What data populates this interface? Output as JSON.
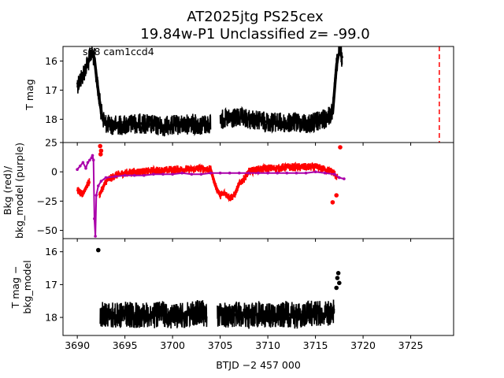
{
  "chart_data": {
    "type": "scatter",
    "title_line1": "AT2025jtg  PS25cex",
    "title_line2": "19.84w-P1 Unclassified z= -99.0",
    "annotation": "s88 cam1ccd4",
    "xlabel": "BTJD −2 457 000",
    "xlim": [
      3688.5,
      3729.5
    ],
    "x_ticks": [
      3690,
      3695,
      3700,
      3705,
      3710,
      3715,
      3720,
      3725
    ],
    "x_tick_labels": [
      "3690",
      "3695",
      "3700",
      "3705",
      "3710",
      "3715",
      "3720",
      "3725"
    ],
    "vline": {
      "x": 3728.0,
      "color": "#ff0000",
      "style": "dashed"
    },
    "panels": [
      {
        "id": "top",
        "ylabel": "T mag",
        "ylim": [
          18.8,
          15.5
        ],
        "y_inverted": true,
        "y_ticks": [
          16,
          17,
          18
        ],
        "y_tick_labels": [
          "16",
          "17",
          "18"
        ],
        "series": [
          {
            "color": "#000000",
            "segments": [
              {
                "x": [
                  3690.0,
                  3690.4,
                  3690.8,
                  3691.2,
                  3691.5,
                  3691.8,
                  3692.0,
                  3692.3,
                  3692.6,
                  3692.9,
                  3693.3,
                  3694.0,
                  3695.0,
                  3696.0,
                  3697.0,
                  3698.0,
                  3699.0,
                  3700.0,
                  3701.0,
                  3702.0,
                  3703.0,
                  3704.0
                ],
                "y": [
                  16.8,
                  16.6,
                  16.3,
                  16.0,
                  15.7,
                  15.9,
                  16.5,
                  17.3,
                  17.9,
                  18.1,
                  18.2,
                  18.2,
                  18.2,
                  18.15,
                  18.15,
                  18.2,
                  18.25,
                  18.2,
                  18.2,
                  18.15,
                  18.2,
                  18.15
                ]
              },
              {
                "x": [
                  3705.0,
                  3706.0,
                  3707.0,
                  3708.0,
                  3709.0,
                  3710.0,
                  3711.0,
                  3712.0,
                  3713.0,
                  3714.0,
                  3715.0,
                  3716.0,
                  3716.8,
                  3717.0,
                  3717.2,
                  3717.4,
                  3717.6,
                  3717.8
                ],
                "y": [
                  18.0,
                  18.0,
                  17.95,
                  18.0,
                  18.05,
                  18.1,
                  18.1,
                  18.15,
                  18.1,
                  18.15,
                  18.1,
                  18.0,
                  17.8,
                  17.0,
                  16.2,
                  15.8,
                  15.7,
                  15.9
                ]
              }
            ],
            "scatter_amplitude": 0.35
          }
        ]
      },
      {
        "id": "middle",
        "ylabel": "Bkg (red)/ bkg_model (purple)",
        "ylim": [
          -57,
          25
        ],
        "y_ticks": [
          25,
          0,
          -25,
          -50
        ],
        "y_tick_labels": [
          "25",
          "0",
          "−25",
          "−50"
        ],
        "series": [
          {
            "color": "#ff0000",
            "segments": [
              {
                "x": [
                  3690.0,
                  3690.5,
                  3691.0,
                  3691.3
                ],
                "y": [
                  -15,
                  -20,
                  -12,
                  -8
                ]
              },
              {
                "x": [
                  3692.3,
                  3692.6,
                  3693.0,
                  3694.0,
                  3695.0,
                  3696.0,
                  3697.0,
                  3698.0,
                  3699.0,
                  3700.0,
                  3701.0,
                  3702.0,
                  3703.0,
                  3704.0,
                  3704.5,
                  3705.0,
                  3705.5,
                  3706.0,
                  3706.5,
                  3707.0,
                  3707.5,
                  3708.0,
                  3709.0,
                  3710.0,
                  3711.0,
                  3712.0,
                  3713.0,
                  3714.0,
                  3715.0,
                  3716.0,
                  3716.8,
                  3717.3
                ],
                "y": [
                  -20,
                  -15,
                  -8,
                  -3,
                  -1,
                  0,
                  0,
                  1,
                  1,
                  2,
                  2,
                  2,
                  3,
                  2,
                  -12,
                  -20,
                  -18,
                  -22,
                  -20,
                  -10,
                  -6,
                  0,
                  2,
                  3,
                  3,
                  4,
                  4,
                  4,
                  4,
                  2,
                  0,
                  -5
                ]
              }
            ],
            "scatter_amplitude": 3.5,
            "outliers": {
              "x": [
                3692.4,
                3692.5,
                3692.45,
                3716.8,
                3717.2,
                3717.6
              ],
              "y": [
                22,
                18,
                15,
                -26,
                -20,
                21
              ]
            }
          },
          {
            "color": "#aa00aa",
            "segments": [
              {
                "x": [
                  3690.0,
                  3690.3,
                  3690.6,
                  3690.9,
                  3691.1,
                  3691.3,
                  3691.5,
                  3691.6,
                  3691.7,
                  3691.8,
                  3691.9,
                  3692.0,
                  3692.2,
                  3692.5,
                  3693.0,
                  3694.0,
                  3695.0,
                  3696.0,
                  3697.0,
                  3698.0,
                  3699.0,
                  3700.0,
                  3701.0,
                  3702.0,
                  3703.0,
                  3704.0,
                  3705.0,
                  3706.0,
                  3707.0,
                  3708.0,
                  3709.0,
                  3710.0,
                  3711.0,
                  3712.0,
                  3713.0,
                  3714.0,
                  3715.0,
                  3716.0,
                  3717.0,
                  3717.5,
                  3718.0
                ],
                "y": [
                  2,
                  5,
                  8,
                  3,
                  8,
                  10,
                  12,
                  14,
                  10,
                  -40,
                  -55,
                  -20,
                  -12,
                  -8,
                  -5,
                  -4,
                  -3,
                  -3,
                  -3,
                  -2,
                  -2,
                  -2,
                  -1,
                  -2,
                  -2,
                  -1,
                  -1,
                  -1,
                  -1,
                  -1,
                  -1,
                  -1,
                  -1,
                  -1,
                  -1,
                  -1,
                  0,
                  -1,
                  -2,
                  -5,
                  -6
                ]
              }
            ],
            "scatter_amplitude": 0
          }
        ]
      },
      {
        "id": "bottom",
        "ylabel": "T mag − bkg_model",
        "ylim": [
          18.55,
          15.6
        ],
        "y_inverted": true,
        "y_ticks": [
          16,
          17,
          18
        ],
        "y_tick_labels": [
          "16",
          "17",
          "18"
        ],
        "series": [
          {
            "color": "#000000",
            "segments": [
              {
                "x": [
                  3692.4,
                  3693.0,
                  3694.0,
                  3695.0,
                  3696.0,
                  3697.0,
                  3698.0,
                  3699.0,
                  3700.0,
                  3701.0,
                  3702.0,
                  3703.0,
                  3703.6
                ],
                "y": [
                  17.9,
                  17.9,
                  17.95,
                  17.9,
                  17.95,
                  17.9,
                  17.95,
                  17.9,
                  17.95,
                  17.95,
                  17.9,
                  17.85,
                  17.9
                ]
              },
              {
                "x": [
                  3704.7,
                  3705.0,
                  3706.0,
                  3707.0,
                  3708.0,
                  3709.0,
                  3710.0,
                  3711.0,
                  3712.0,
                  3713.0,
                  3714.0,
                  3715.0,
                  3716.0,
                  3717.0
                ],
                "y": [
                  17.9,
                  17.9,
                  17.95,
                  17.9,
                  17.95,
                  17.9,
                  17.95,
                  17.9,
                  17.9,
                  17.95,
                  17.9,
                  17.85,
                  17.9,
                  17.8
                ]
              }
            ],
            "scatter_amplitude": 0.4,
            "outliers": {
              "x": [
                3692.2,
                3717.3,
                3717.4,
                3717.5,
                3717.2
              ],
              "y": [
                15.95,
                16.8,
                16.65,
                16.95,
                17.1
              ]
            }
          }
        ]
      }
    ]
  }
}
